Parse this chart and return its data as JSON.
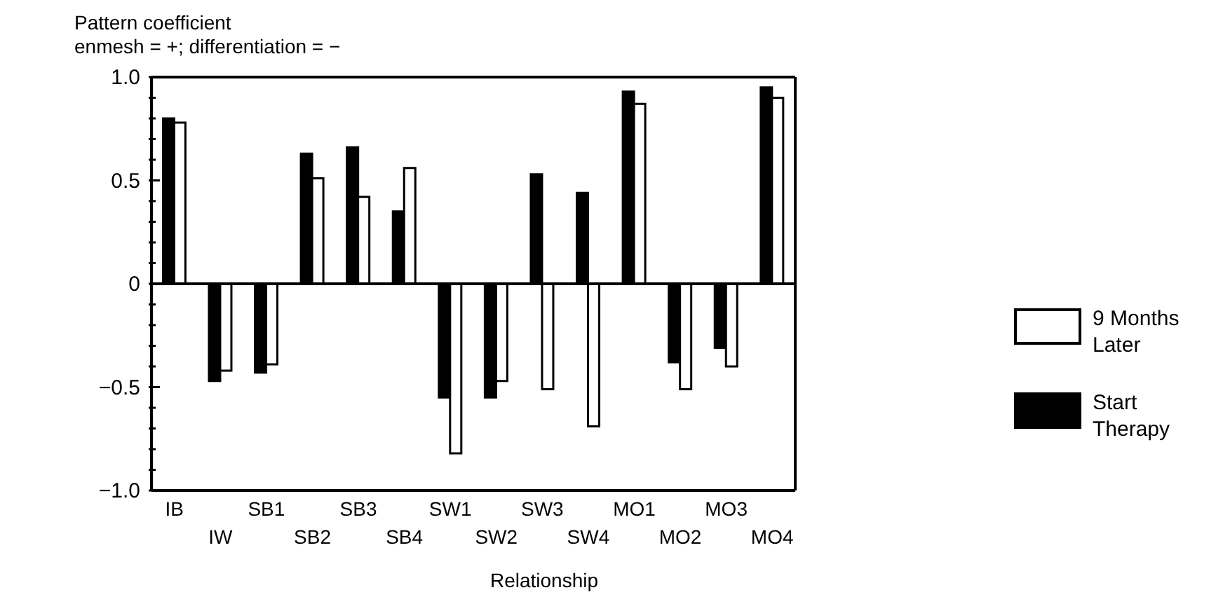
{
  "chart_data": {
    "type": "bar",
    "ylabel": "Pattern coefficient",
    "subtitle": "enmesh = +; differentiation = −",
    "xlabel": "Relationship",
    "categories": [
      "IB",
      "IW",
      "SB1",
      "SB2",
      "SB3",
      "SB4",
      "SW1",
      "SW2",
      "SW3",
      "SW4",
      "MO1",
      "MO2",
      "MO3",
      "MO4"
    ],
    "series": [
      {
        "name": "Start Therapy",
        "color": "#000000",
        "values": [
          0.8,
          -0.47,
          -0.43,
          0.63,
          0.66,
          0.35,
          -0.55,
          -0.55,
          0.53,
          0.44,
          0.93,
          -0.38,
          -0.31,
          0.95
        ]
      },
      {
        "name": "9 Months Later",
        "color": "#ffffff",
        "values": [
          0.78,
          -0.42,
          -0.39,
          0.51,
          0.42,
          0.56,
          -0.82,
          -0.47,
          -0.51,
          -0.69,
          0.87,
          -0.51,
          -0.4,
          0.9
        ]
      }
    ],
    "ylim": [
      -1,
      1
    ],
    "yticks": [
      {
        "value": -1,
        "label": "−1.0"
      },
      {
        "value": -0.9,
        "label": null
      },
      {
        "value": -0.8,
        "label": null
      },
      {
        "value": -0.7,
        "label": null
      },
      {
        "value": -0.6,
        "label": null
      },
      {
        "value": -0.5,
        "label": "−0.5"
      },
      {
        "value": -0.4,
        "label": null
      },
      {
        "value": -0.3,
        "label": null
      },
      {
        "value": -0.2,
        "label": null
      },
      {
        "value": -0.1,
        "label": null
      },
      {
        "value": 0,
        "label": "0"
      },
      {
        "value": 0.1,
        "label": null
      },
      {
        "value": 0.2,
        "label": null
      },
      {
        "value": 0.3,
        "label": null
      },
      {
        "value": 0.4,
        "label": null
      },
      {
        "value": 0.5,
        "label": "0.5"
      },
      {
        "value": 0.6,
        "label": null
      },
      {
        "value": 0.7,
        "label": null
      },
      {
        "value": 0.8,
        "label": null
      },
      {
        "value": 0.9,
        "label": null
      },
      {
        "value": 1,
        "label": "1.0"
      }
    ],
    "ref_lines": [
      {
        "axis": "y",
        "value": 0,
        "color": "#000000"
      }
    ],
    "legend": "right",
    "grid": false
  }
}
